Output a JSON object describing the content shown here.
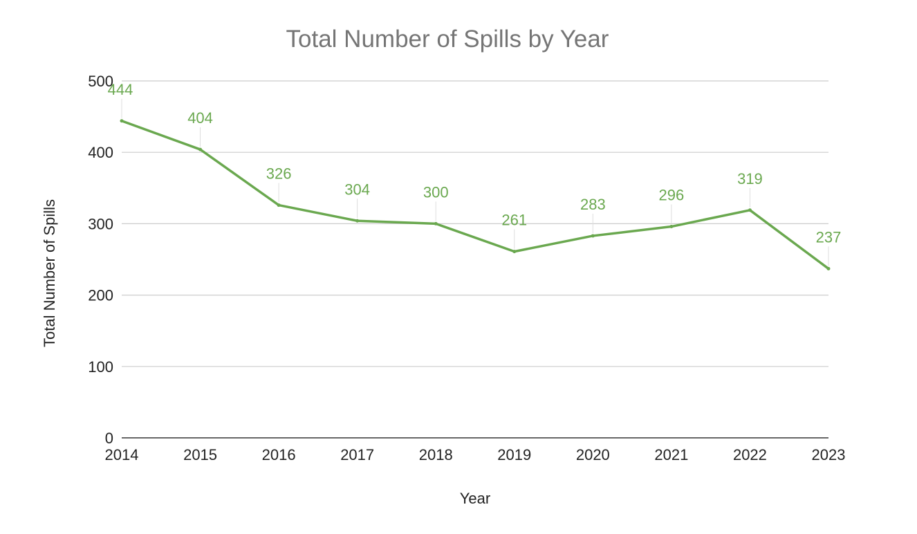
{
  "chart_data": {
    "type": "line",
    "title": "Total Number of Spills by Year",
    "xlabel": "Year",
    "ylabel": "Total Number of Spills",
    "categories": [
      "2014",
      "2015",
      "2016",
      "2017",
      "2018",
      "2019",
      "2020",
      "2021",
      "2022",
      "2023"
    ],
    "series": [
      {
        "values": [
          444,
          404,
          326,
          304,
          300,
          261,
          283,
          296,
          319,
          237
        ],
        "color": "#6aa84f"
      }
    ],
    "ylim": [
      0,
      500
    ],
    "yticks": [
      "0",
      "100",
      "200",
      "300",
      "400",
      "500"
    ],
    "data_labels": [
      "444",
      "404",
      "326",
      "304",
      "300",
      "261",
      "283",
      "296",
      "319",
      "237"
    ],
    "grid": true,
    "legend": "none"
  }
}
